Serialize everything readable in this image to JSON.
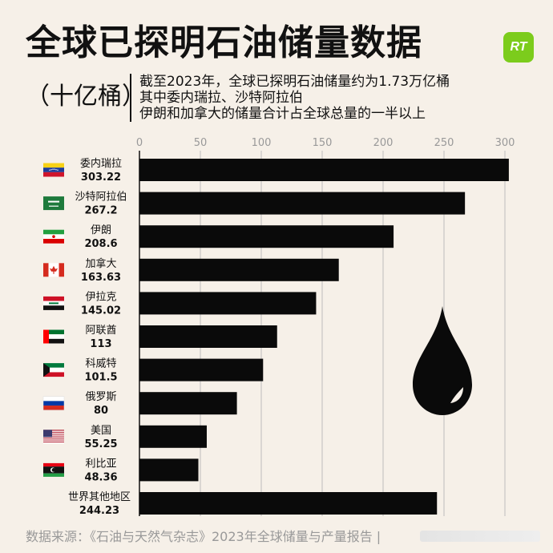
{
  "header": {
    "title": "全球已探明石油储量数据",
    "unit": "（十亿桶）",
    "logo_text": "RT",
    "logo_color": "#7ccc1c",
    "notes": [
      "截至2023年，全球已探明石油储量约为1.73万亿桶",
      "其中委内瑞拉、沙特阿拉伯",
      "伊朗和加拿大的储量合计占全球总量的一半以上"
    ]
  },
  "footer": {
    "source": "数据来源：《石油与天然气杂志》2023年全球储量与产量报告 |"
  },
  "chart_data": {
    "type": "bar",
    "orientation": "horizontal",
    "xlim": [
      0,
      300
    ],
    "xticks": [
      0,
      50,
      100,
      150,
      200,
      250,
      300
    ],
    "grid": true,
    "bar_color": "#0a0a0a",
    "categories": [
      {
        "label": "委内瑞拉",
        "value_text": "303.22",
        "value": 303.22,
        "flag": "venezuela-flag"
      },
      {
        "label": "沙特阿拉伯",
        "value_text": "267.2",
        "value": 267.2,
        "flag": "saudi-arabia-flag"
      },
      {
        "label": "伊朗",
        "value_text": "208.6",
        "value": 208.6,
        "flag": "iran-flag"
      },
      {
        "label": "加拿大",
        "value_text": "163.63",
        "value": 163.63,
        "flag": "canada-flag"
      },
      {
        "label": "伊拉克",
        "value_text": "145.02",
        "value": 145.02,
        "flag": "iraq-flag"
      },
      {
        "label": "阿联酋",
        "value_text": "113",
        "value": 113,
        "flag": "uae-flag"
      },
      {
        "label": "科威特",
        "value_text": "101.5",
        "value": 101.5,
        "flag": "kuwait-flag"
      },
      {
        "label": "俄罗斯",
        "value_text": "80",
        "value": 80,
        "flag": "russia-flag"
      },
      {
        "label": "美国",
        "value_text": "55.25",
        "value": 55.25,
        "flag": "usa-flag"
      },
      {
        "label": "利比亚",
        "value_text": "48.36",
        "value": 48.36,
        "flag": "libya-flag"
      },
      {
        "label": "世界其他地区",
        "value_text": "244.23",
        "value": 244.23,
        "flag": ""
      }
    ]
  }
}
